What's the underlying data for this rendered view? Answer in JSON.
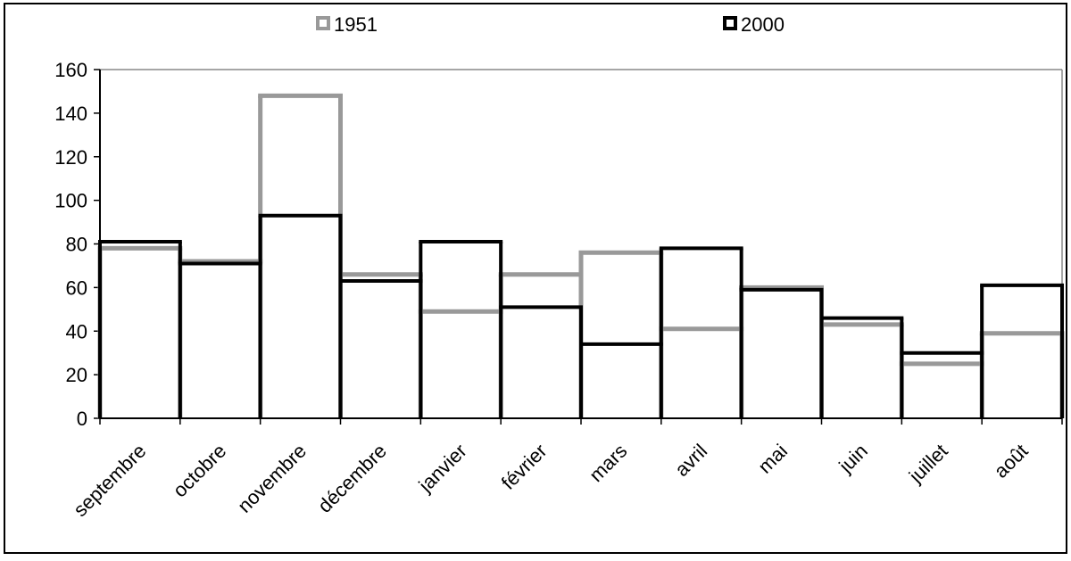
{
  "chart_data": {
    "type": "line",
    "step": true,
    "categories": [
      "septembre",
      "octobre",
      "novembre",
      "décembre",
      "janvier",
      "février",
      "mars",
      "avril",
      "mai",
      "juin",
      "juillet",
      "août"
    ],
    "series": [
      {
        "name": "1951",
        "color": "#999999",
        "values": [
          78,
          72,
          148,
          66,
          49,
          66,
          76,
          41,
          60,
          43,
          25,
          39
        ]
      },
      {
        "name": "2000",
        "color": "#000000",
        "values": [
          81,
          71,
          93,
          63,
          81,
          51,
          34,
          78,
          59,
          46,
          30,
          61
        ]
      }
    ],
    "ylim": [
      0,
      160
    ],
    "yticks": [
      "0",
      "20",
      "40",
      "60",
      "80",
      "100",
      "120",
      "140",
      "160"
    ],
    "grid": false,
    "legend": "top",
    "title": "",
    "xlabel": "",
    "ylabel": ""
  }
}
